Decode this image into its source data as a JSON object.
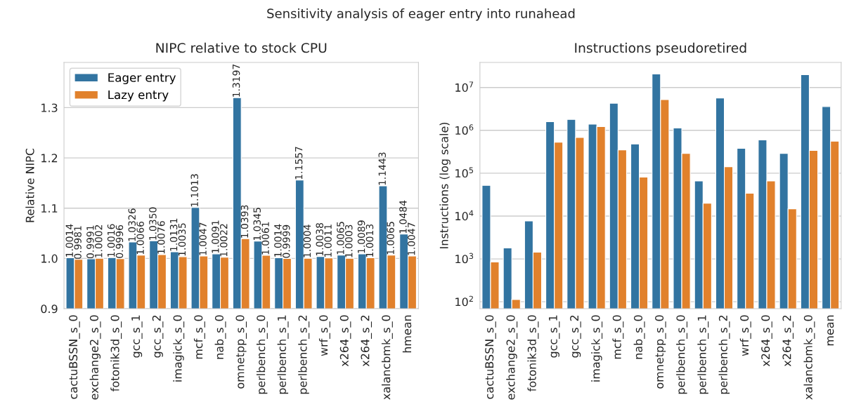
{
  "chart_data": [
    {
      "type": "bar",
      "title": "NIPC relative to stock CPU",
      "ylabel": "Relative NIPC",
      "categories": [
        "cactuBSSN_s_0",
        "exchange2_s_0",
        "fotonik3d_s_0",
        "gcc_s_1",
        "gcc_s_2",
        "imagick_s_0",
        "mcf_s_0",
        "nab_s_0",
        "omnetpp_s_0",
        "perlbench_s_0",
        "perlbench_s_1",
        "perlbench_s_2",
        "wrf_s_0",
        "x264_s_0",
        "x264_s_2",
        "xalancbmk_s_0",
        "hmean"
      ],
      "series": [
        {
          "name": "Eager entry",
          "color": "#3274a1",
          "values": [
            1.0014,
            0.9991,
            1.0016,
            1.0326,
            1.035,
            1.0131,
            1.1013,
            1.0091,
            1.3197,
            1.0345,
            1.0014,
            1.1557,
            1.0038,
            1.0065,
            1.0089,
            1.1443,
            1.0484
          ],
          "value_labels": [
            "1.0014",
            "0.9991",
            "1.0016",
            "1.0326",
            "1.0350",
            "1.0131",
            "1.1013",
            "1.0091",
            "1.3197",
            "1.0345",
            "1.0014",
            "1.1557",
            "1.0038",
            "1.0065",
            "1.0089",
            "1.1443",
            "1.0484"
          ]
        },
        {
          "name": "Lazy entry",
          "color": "#e1812c",
          "values": [
            0.9981,
            1.0002,
            0.9996,
            1.0066,
            1.0076,
            1.0035,
            1.0047,
            1.0022,
            1.0393,
            1.0061,
            0.9999,
            1.0004,
            1.0011,
            1.0003,
            1.0013,
            1.0065,
            1.0047
          ],
          "value_labels": [
            "0.9981",
            "1.0002",
            "0.9996",
            "1.0066",
            "1.0076",
            "1.0035",
            "1.0047",
            "1.0022",
            "1.0393",
            "1.0061",
            "0.9999",
            "1.0004",
            "1.0011",
            "1.0003",
            "1.0013",
            "1.0065",
            "1.0047"
          ]
        }
      ],
      "ylim": [
        0.9,
        1.39
      ],
      "yticks": [
        {
          "value": 0.9,
          "label": "0.9"
        },
        {
          "value": 1.0,
          "label": "1.0"
        },
        {
          "value": 1.1,
          "label": "1.1"
        },
        {
          "value": 1.2,
          "label": "1.2"
        },
        {
          "value": 1.3,
          "label": "1.3"
        }
      ],
      "grid": "y",
      "legend": "top left",
      "annotations": [
        "Sensitivity analysis of eager entry into runahead"
      ]
    },
    {
      "type": "bar",
      "title": "Instructions pseudoretired",
      "ylabel": "Instructions (log scale)",
      "log": true,
      "categories": [
        "cactuBSSN_s_0",
        "exchange2_s_0",
        "fotonik3d_s_0",
        "gcc_s_1",
        "gcc_s_2",
        "imagick_s_0",
        "mcf_s_0",
        "nab_s_0",
        "omnetpp_s_0",
        "perlbench_s_0",
        "perlbench_s_1",
        "perlbench_s_2",
        "wrf_s_0",
        "x264_s_0",
        "x264_s_2",
        "xalancbmk_s_0",
        "mean"
      ],
      "series": [
        {
          "color": "#3274a1",
          "values": [
            52000,
            1800,
            7700,
            1600000,
            1800000,
            1400000,
            4300000,
            480000,
            20700000,
            1130000,
            66000,
            5700000,
            380000,
            600000,
            290000,
            19900000,
            3600000
          ]
        },
        {
          "color": "#e1812c",
          "values": [
            850,
            113,
            1440,
            530000,
            680000,
            1220000,
            350000,
            81000,
            5200000,
            290000,
            20000,
            142000,
            34000,
            66000,
            14800,
            340000,
            560000
          ]
        }
      ],
      "ylim": [
        69,
        38500000
      ],
      "yticks": [
        {
          "value": 100,
          "label": "10$^{2}$"
        },
        {
          "value": 1000,
          "label": "10$^{3}$"
        },
        {
          "value": 10000,
          "label": "10$^{4}$"
        },
        {
          "value": 100000,
          "label": "10$^{5}$"
        },
        {
          "value": 1000000,
          "label": "10$^{6}$"
        },
        {
          "value": 10000000,
          "label": "10$^{7}$"
        }
      ],
      "grid": "y"
    }
  ]
}
